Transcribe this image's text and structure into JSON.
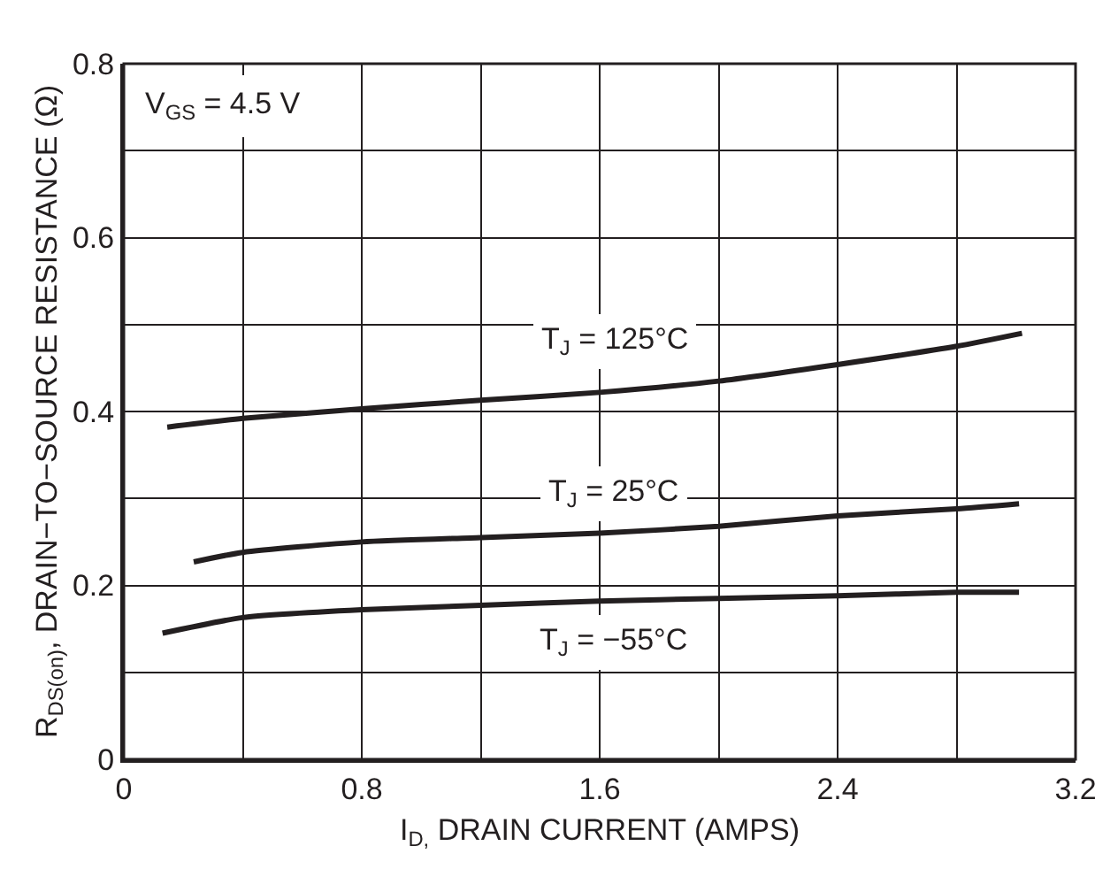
{
  "chart_data": {
    "type": "line",
    "xlabel": "I$_{D,}$ DRAIN CURRENT (AMPS)",
    "ylabel": "R$_{DS(on)}$, DRAIN−TO−SOURCE RESISTANCE (Ω)",
    "x": [
      0.146,
      0.4,
      0.8,
      1.2,
      1.6,
      2.0,
      2.4,
      2.8,
      3.02
    ],
    "series": [
      {
        "name": "T$_{J}$ = 125°C",
        "color": "#231f20",
        "values": [
          0.382,
          0.392,
          0.403,
          0.413,
          0.422,
          0.435,
          0.454,
          0.475,
          0.49
        ]
      },
      {
        "name": "T$_{J}$ = 25°C",
        "color": "#231f20",
        "x": [
          0.235,
          0.4,
          0.8,
          1.2,
          1.6,
          2.0,
          2.4,
          2.8,
          3.01
        ],
        "values": [
          0.227,
          0.238,
          0.25,
          0.255,
          0.26,
          0.268,
          0.28,
          0.288,
          0.294
        ]
      },
      {
        "name": "T$_{J}$ = −55°C",
        "color": "#231f20",
        "x": [
          0.13,
          0.4,
          0.8,
          1.2,
          1.6,
          2.0,
          2.4,
          2.8,
          3.01
        ],
        "values": [
          0.145,
          0.163,
          0.172,
          0.177,
          0.182,
          0.185,
          0.188,
          0.192,
          0.192
        ]
      }
    ],
    "annotations": [
      "V$_{GS}$ = 4.5 V"
    ],
    "xlim": [
      0,
      3.2
    ],
    "ylim": [
      0,
      0.8
    ],
    "xticks": [
      0,
      {
        "value": 0.4,
        "label": null
      },
      0.8,
      {
        "value": 1.2,
        "label": null
      },
      1.6,
      {
        "value": 2.0,
        "label": null
      },
      2.4,
      {
        "value": 2.8,
        "label": null
      },
      3.2
    ],
    "yticks": [
      0,
      {
        "value": 0.1,
        "label": null
      },
      0.2,
      {
        "value": 0.3,
        "label": null
      },
      0.4,
      {
        "value": 0.5,
        "label": null
      },
      0.6,
      {
        "value": 0.7,
        "label": null
      },
      0.8
    ],
    "grid": true,
    "marker": "none",
    "line_style": "solid",
    "legend": false
  }
}
